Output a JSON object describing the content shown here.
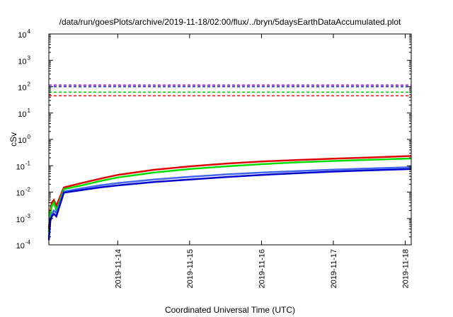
{
  "chart_data": {
    "type": "line",
    "title": "/data/run/goesPlots/archive/2019-11-18/02:00/flux/../bryn/5daysEarthDataAccumulated.plot",
    "xlabel": "Coordinated Universal Time (UTC)",
    "ylabel": "cSv",
    "yscale": "log",
    "ylim": [
      0.0001,
      10000
    ],
    "xlim": [
      "2019-11-13 01:00",
      "2019-11-18 02:00"
    ],
    "grid": false,
    "legend": "none",
    "y_ticks": [
      {
        "value": 0.0001,
        "base": "10",
        "exp": "-4"
      },
      {
        "value": 0.001,
        "base": "10",
        "exp": "-3"
      },
      {
        "value": 0.01,
        "base": "10",
        "exp": "-2"
      },
      {
        "value": 0.1,
        "base": "10",
        "exp": "-1"
      },
      {
        "value": 1,
        "base": "10",
        "exp": "0"
      },
      {
        "value": 10,
        "base": "10",
        "exp": "1"
      },
      {
        "value": 100,
        "base": "10",
        "exp": "2"
      },
      {
        "value": 1000,
        "base": "10",
        "exp": "3"
      },
      {
        "value": 10000,
        "base": "10",
        "exp": "4"
      }
    ],
    "x_ticks": [
      {
        "value": "2019-11-14 00:00",
        "label": "2019-11-14"
      },
      {
        "value": "2019-11-15 00:00",
        "label": "2019-11-15"
      },
      {
        "value": "2019-11-16 00:00",
        "label": "2019-11-16"
      },
      {
        "value": "2019-11-17 00:00",
        "label": "2019-11-17"
      },
      {
        "value": "2019-11-18 00:00",
        "label": "2019-11-18"
      }
    ],
    "thresholds": [
      {
        "value": 115,
        "color": "#9400d3"
      },
      {
        "value": 100,
        "color": "#0000cd"
      },
      {
        "value": 62,
        "color": "#00cc00"
      },
      {
        "value": 45,
        "color": "#ff0000"
      }
    ],
    "series": [
      {
        "color": "#e00000",
        "x": [
          "2019-11-13 01:00",
          "2019-11-13 01:30",
          "2019-11-13 02:00",
          "2019-11-13 02:40",
          "2019-11-13 03:30",
          "2019-11-13 06:00",
          "2019-11-13 12:00",
          "2019-11-13 18:00",
          "2019-11-14 00:00",
          "2019-11-14 12:00",
          "2019-11-15 00:00",
          "2019-11-15 12:00",
          "2019-11-16 00:00",
          "2019-11-16 12:00",
          "2019-11-17 00:00",
          "2019-11-17 12:00",
          "2019-11-18 00:00",
          "2019-11-18 02:00"
        ],
        "y": [
          0.0004,
          0.002,
          0.004,
          0.005,
          0.003,
          0.015,
          0.022,
          0.032,
          0.045,
          0.07,
          0.095,
          0.12,
          0.145,
          0.165,
          0.185,
          0.205,
          0.23,
          0.235
        ]
      },
      {
        "color": "#00dd00",
        "x": [
          "2019-11-13 01:00",
          "2019-11-13 01:30",
          "2019-11-13 02:00",
          "2019-11-13 02:40",
          "2019-11-13 03:30",
          "2019-11-13 06:00",
          "2019-11-13 12:00",
          "2019-11-13 18:00",
          "2019-11-14 00:00",
          "2019-11-14 12:00",
          "2019-11-15 00:00",
          "2019-11-15 12:00",
          "2019-11-16 00:00",
          "2019-11-16 12:00",
          "2019-11-17 00:00",
          "2019-11-17 12:00",
          "2019-11-18 00:00",
          "2019-11-18 02:00"
        ],
        "y": [
          0.0003,
          0.0015,
          0.003,
          0.004,
          0.002,
          0.013,
          0.018,
          0.026,
          0.036,
          0.055,
          0.075,
          0.095,
          0.115,
          0.135,
          0.152,
          0.168,
          0.185,
          0.19
        ]
      },
      {
        "color": "#4466ee",
        "x": [
          "2019-11-13 01:00",
          "2019-11-13 01:30",
          "2019-11-13 02:00",
          "2019-11-13 02:40",
          "2019-11-13 03:30",
          "2019-11-13 06:00",
          "2019-11-13 12:00",
          "2019-11-13 18:00",
          "2019-11-14 00:00",
          "2019-11-14 12:00",
          "2019-11-15 00:00",
          "2019-11-15 12:00",
          "2019-11-16 00:00",
          "2019-11-16 12:00",
          "2019-11-17 00:00",
          "2019-11-17 12:00",
          "2019-11-18 00:00",
          "2019-11-18 02:00"
        ],
        "y": [
          0.0002,
          0.001,
          0.0015,
          0.002,
          0.0016,
          0.0105,
          0.014,
          0.018,
          0.022,
          0.03,
          0.038,
          0.047,
          0.055,
          0.063,
          0.071,
          0.079,
          0.087,
          0.09
        ]
      },
      {
        "color": "#0000cc",
        "x": [
          "2019-11-13 01:00",
          "2019-11-13 01:30",
          "2019-11-13 02:00",
          "2019-11-13 02:40",
          "2019-11-13 03:30",
          "2019-11-13 06:00",
          "2019-11-13 12:00",
          "2019-11-13 18:00",
          "2019-11-14 00:00",
          "2019-11-14 12:00",
          "2019-11-15 00:00",
          "2019-11-15 12:00",
          "2019-11-16 00:00",
          "2019-11-16 12:00",
          "2019-11-17 00:00",
          "2019-11-17 12:00",
          "2019-11-18 00:00",
          "2019-11-18 02:00"
        ],
        "y": [
          0.00015,
          0.0008,
          0.0012,
          0.0015,
          0.0012,
          0.0095,
          0.012,
          0.015,
          0.018,
          0.024,
          0.03,
          0.037,
          0.045,
          0.052,
          0.06,
          0.067,
          0.074,
          0.076
        ]
      }
    ]
  }
}
